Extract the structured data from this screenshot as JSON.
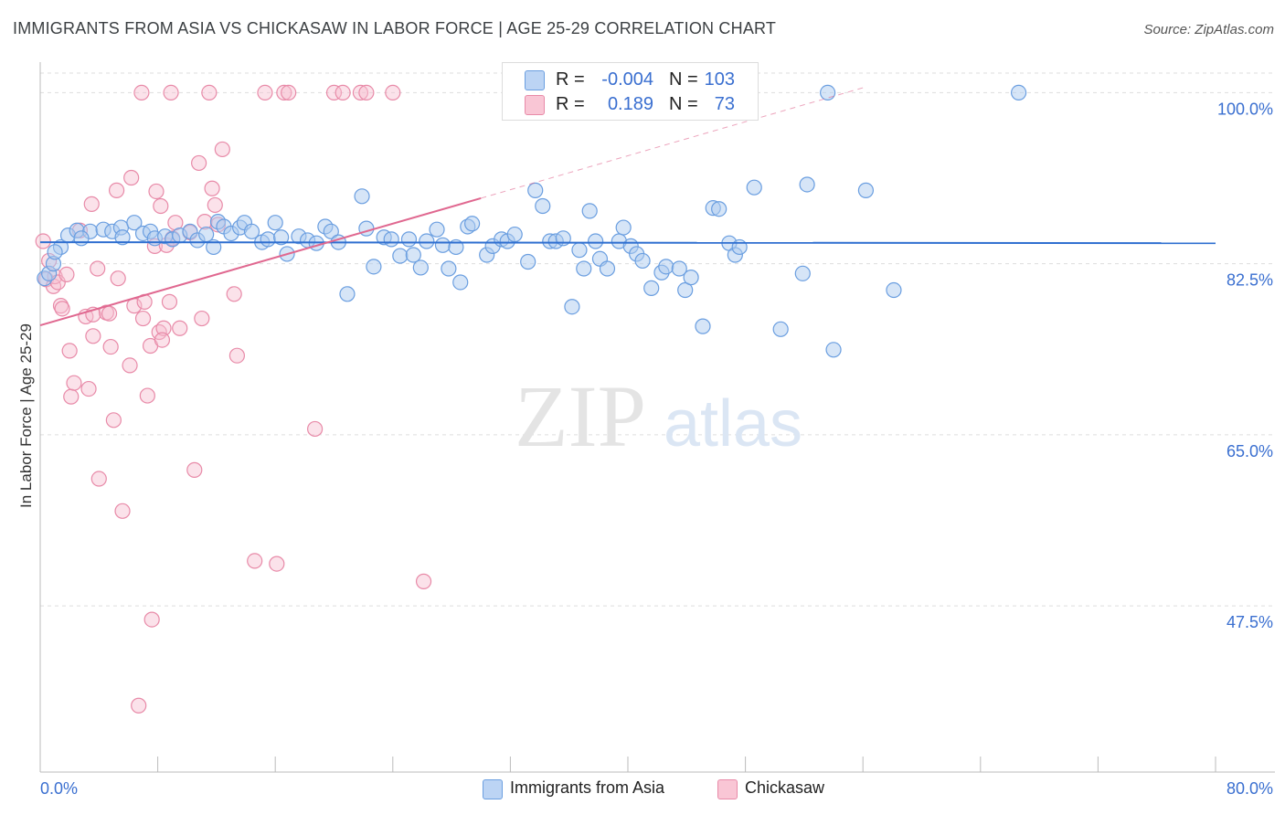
{
  "header": {
    "title": "IMMIGRANTS FROM ASIA VS CHICKASAW IN LABOR FORCE | AGE 25-29 CORRELATION CHART",
    "source": "Source: ZipAtlas.com"
  },
  "watermark": {
    "zip": "ZIP",
    "atlas": "atlas"
  },
  "legend": {
    "rows": [
      {
        "r_label": "R =",
        "r_value": "-0.004",
        "n_label": "N =",
        "n_value": "103",
        "color": "#a8c8f0"
      },
      {
        "r_label": "R =",
        "r_value": "0.189",
        "n_label": "N =",
        "n_value": "73",
        "color": "#f7b8cc"
      }
    ]
  },
  "bottom_legend": {
    "asia": "Immigrants from Asia",
    "chickasaw": "Chickasaw"
  },
  "colors": {
    "asia_fill": "#aecbf0",
    "asia_stroke": "#6a9ee0",
    "asia_line": "#2f6fd0",
    "chick_fill": "#f7bfd0",
    "chick_stroke": "#e88aa8",
    "chick_line": "#e06890",
    "tick_text": "#3a6fd0",
    "grid": "#dddddd"
  },
  "chart_data": {
    "type": "scatter",
    "title": "IMMIGRANTS FROM ASIA VS CHICKASAW IN LABOR FORCE | AGE 25-29 CORRELATION CHART",
    "xlabel": "",
    "ylabel": "In Labor Force | Age 25-29",
    "xlim": [
      0,
      80
    ],
    "ylim": [
      30.5,
      102
    ],
    "x_tick_labels": [
      "0.0%",
      "80.0%"
    ],
    "y_ticks": [
      47.5,
      65.0,
      82.5,
      100.0
    ],
    "y_tick_labels": [
      "47.5%",
      "65.0%",
      "82.5%",
      "100.0%"
    ],
    "series": [
      {
        "name": "Immigrants from Asia",
        "R": -0.004,
        "N": 103,
        "trend": {
          "x": [
            0,
            80
          ],
          "y": [
            84.7,
            84.6
          ]
        },
        "points": [
          [
            0.3,
            81.0
          ],
          [
            0.6,
            81.5
          ],
          [
            0.9,
            82.5
          ],
          [
            1.4,
            84.2
          ],
          [
            1.9,
            85.4
          ],
          [
            2.5,
            85.9
          ],
          [
            3.4,
            85.8
          ],
          [
            4.3,
            86.0
          ],
          [
            4.9,
            85.8
          ],
          [
            5.5,
            86.2
          ],
          [
            5.6,
            85.2
          ],
          [
            6.4,
            86.7
          ],
          [
            7.0,
            85.6
          ],
          [
            7.5,
            85.8
          ],
          [
            7.8,
            85.1
          ],
          [
            8.5,
            85.3
          ],
          [
            9.0,
            85.0
          ],
          [
            9.5,
            85.4
          ],
          [
            10.2,
            85.8
          ],
          [
            10.7,
            84.9
          ],
          [
            11.3,
            85.5
          ],
          [
            11.8,
            84.2
          ],
          [
            12.1,
            86.8
          ],
          [
            12.5,
            86.3
          ],
          [
            13.0,
            85.6
          ],
          [
            13.6,
            86.2
          ],
          [
            13.9,
            86.7
          ],
          [
            14.4,
            85.8
          ],
          [
            15.1,
            84.7
          ],
          [
            15.5,
            85.0
          ],
          [
            16.0,
            86.7
          ],
          [
            16.4,
            85.2
          ],
          [
            16.8,
            83.5
          ],
          [
            17.6,
            85.3
          ],
          [
            18.2,
            84.9
          ],
          [
            18.8,
            84.6
          ],
          [
            19.4,
            86.3
          ],
          [
            19.8,
            85.8
          ],
          [
            20.3,
            84.7
          ],
          [
            20.9,
            79.4
          ],
          [
            21.9,
            89.4
          ],
          [
            22.2,
            86.1
          ],
          [
            22.7,
            82.2
          ],
          [
            23.4,
            85.2
          ],
          [
            23.9,
            85.0
          ],
          [
            24.5,
            83.3
          ],
          [
            25.1,
            85.0
          ],
          [
            25.4,
            83.4
          ],
          [
            25.9,
            82.1
          ],
          [
            26.3,
            84.8
          ],
          [
            27.0,
            86.0
          ],
          [
            27.4,
            84.4
          ],
          [
            27.8,
            82.0
          ],
          [
            28.3,
            84.2
          ],
          [
            28.6,
            80.6
          ],
          [
            29.1,
            86.3
          ],
          [
            29.4,
            86.6
          ],
          [
            30.4,
            83.4
          ],
          [
            30.8,
            84.3
          ],
          [
            31.4,
            85.0
          ],
          [
            31.8,
            84.8
          ],
          [
            32.3,
            85.5
          ],
          [
            33.2,
            82.7
          ],
          [
            33.7,
            90.0
          ],
          [
            34.2,
            88.4
          ],
          [
            34.7,
            84.8
          ],
          [
            35.1,
            84.8
          ],
          [
            35.6,
            85.1
          ],
          [
            36.2,
            78.1
          ],
          [
            36.7,
            83.9
          ],
          [
            37.0,
            82.0
          ],
          [
            37.4,
            87.9
          ],
          [
            37.8,
            84.8
          ],
          [
            38.1,
            83.0
          ],
          [
            38.6,
            82.0
          ],
          [
            39.4,
            84.8
          ],
          [
            39.7,
            86.2
          ],
          [
            40.2,
            84.3
          ],
          [
            40.6,
            83.5
          ],
          [
            41.0,
            82.8
          ],
          [
            41.6,
            80.0
          ],
          [
            42.3,
            81.6
          ],
          [
            42.6,
            82.2
          ],
          [
            43.5,
            82.0
          ],
          [
            43.9,
            79.8
          ],
          [
            44.3,
            81.1
          ],
          [
            45.1,
            76.1
          ],
          [
            45.8,
            88.2
          ],
          [
            46.2,
            88.1
          ],
          [
            46.9,
            84.6
          ],
          [
            47.3,
            83.4
          ],
          [
            47.6,
            84.2
          ],
          [
            48.6,
            90.3
          ],
          [
            50.4,
            75.8
          ],
          [
            51.9,
            81.5
          ],
          [
            52.2,
            90.6
          ],
          [
            53.6,
            100.0
          ],
          [
            54.0,
            73.7
          ],
          [
            56.2,
            90.0
          ],
          [
            58.1,
            79.8
          ],
          [
            66.6,
            100.0
          ],
          [
            1.0,
            83.7
          ],
          [
            2.8,
            85.1
          ]
        ]
      },
      {
        "name": "Chickasaw",
        "R": 0.189,
        "N": 73,
        "trend": {
          "x": [
            0,
            30
          ],
          "y": [
            76.2,
            89.2
          ]
        },
        "trend_dashed": {
          "x": [
            30,
            56
          ],
          "y": [
            89.2,
            100.5
          ]
        },
        "points": [
          [
            0.2,
            84.8
          ],
          [
            0.4,
            80.9
          ],
          [
            0.6,
            82.8
          ],
          [
            0.9,
            80.2
          ],
          [
            1.0,
            81.2
          ],
          [
            1.2,
            80.6
          ],
          [
            1.4,
            78.2
          ],
          [
            1.5,
            77.9
          ],
          [
            1.8,
            81.4
          ],
          [
            2.0,
            73.6
          ],
          [
            2.1,
            68.9
          ],
          [
            2.3,
            70.3
          ],
          [
            2.7,
            85.9
          ],
          [
            3.1,
            77.1
          ],
          [
            3.3,
            69.7
          ],
          [
            3.5,
            88.6
          ],
          [
            3.6,
            75.1
          ],
          [
            3.9,
            82.0
          ],
          [
            4.0,
            60.5
          ],
          [
            4.5,
            77.5
          ],
          [
            4.7,
            77.4
          ],
          [
            4.8,
            74.0
          ],
          [
            5.0,
            66.5
          ],
          [
            5.2,
            90.0
          ],
          [
            5.3,
            81.0
          ],
          [
            5.6,
            57.2
          ],
          [
            6.1,
            72.1
          ],
          [
            6.2,
            91.3
          ],
          [
            6.4,
            78.2
          ],
          [
            6.7,
            37.3
          ],
          [
            6.9,
            100.0
          ],
          [
            7.0,
            76.9
          ],
          [
            7.1,
            78.6
          ],
          [
            7.3,
            69.0
          ],
          [
            7.5,
            74.1
          ],
          [
            7.6,
            46.1
          ],
          [
            7.8,
            84.3
          ],
          [
            7.9,
            89.9
          ],
          [
            8.1,
            75.5
          ],
          [
            8.2,
            88.4
          ],
          [
            8.4,
            75.9
          ],
          [
            8.6,
            84.4
          ],
          [
            8.8,
            78.6
          ],
          [
            8.9,
            100.0
          ],
          [
            9.0,
            85.1
          ],
          [
            9.2,
            86.7
          ],
          [
            9.5,
            75.9
          ],
          [
            10.2,
            85.7
          ],
          [
            10.5,
            61.4
          ],
          [
            10.8,
            92.8
          ],
          [
            11.0,
            76.9
          ],
          [
            11.2,
            86.8
          ],
          [
            11.5,
            100.0
          ],
          [
            11.7,
            90.2
          ],
          [
            11.9,
            88.5
          ],
          [
            12.1,
            86.5
          ],
          [
            12.4,
            94.2
          ],
          [
            13.2,
            79.4
          ],
          [
            13.4,
            73.1
          ],
          [
            14.6,
            52.1
          ],
          [
            15.3,
            100.0
          ],
          [
            16.1,
            51.8
          ],
          [
            16.6,
            100.0
          ],
          [
            16.9,
            100.0
          ],
          [
            18.7,
            65.6
          ],
          [
            20.0,
            100.0
          ],
          [
            20.6,
            100.0
          ],
          [
            21.8,
            100.0
          ],
          [
            22.2,
            100.0
          ],
          [
            24.0,
            100.0
          ],
          [
            26.1,
            50.0
          ],
          [
            3.6,
            77.3
          ],
          [
            8.3,
            74.7
          ]
        ]
      }
    ]
  }
}
